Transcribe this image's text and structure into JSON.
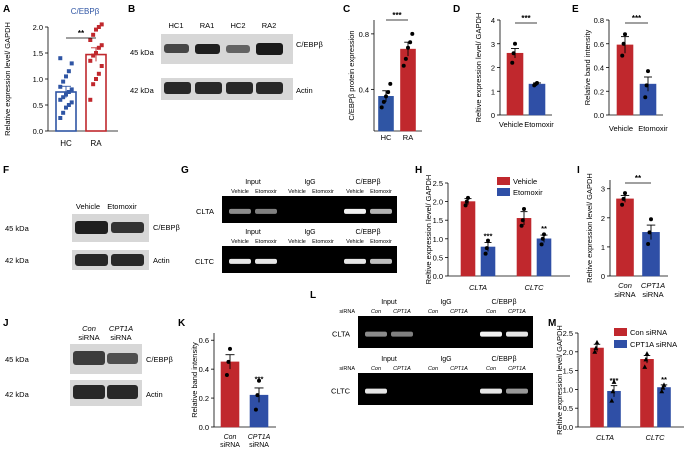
{
  "colors": {
    "hc": "#2f55a4",
    "ra": "#c0282d",
    "vehicle": "#c0282d",
    "etomoxir": "#2f4fa6",
    "gel": "#151515"
  },
  "panels": {
    "A": {
      "letter": "A",
      "title": "C/EBPβ",
      "ylabel": "Relative expression level/ GAPDH",
      "yticks": [
        "0.0",
        "0.5",
        "1.0",
        "1.5",
        "2.0"
      ],
      "sig": "**",
      "xlabels": [
        "HC",
        "RA"
      ]
    },
    "B": {
      "letter": "B",
      "lanes": [
        "HC1",
        "RA1",
        "HC2",
        "RA2"
      ],
      "kda": [
        "45 kDa",
        "42 kDa"
      ],
      "bands": [
        "C/EBPβ",
        "Actin"
      ]
    },
    "C": {
      "letter": "C",
      "ylabel": "C/EBPβ protein expression",
      "yticks": [
        "0.4",
        "0.8"
      ],
      "sig": "***",
      "xlabels": [
        "HC",
        "RA"
      ]
    },
    "D": {
      "letter": "D",
      "ylabel": "Reltive expression level/ GAPDH",
      "yticks": [
        "0",
        "1",
        "2",
        "3",
        "4"
      ],
      "sig": "***",
      "xlabels": [
        "Vehicle",
        "Etomoxir"
      ]
    },
    "E": {
      "letter": "E",
      "ylabel": "Relative band intensity",
      "yticks": [
        "0.0",
        "0.2",
        "0.4",
        "0.6",
        "0.8"
      ],
      "sig": "***",
      "xlabels": [
        "Vehicle",
        "Etomoxir"
      ]
    },
    "F": {
      "letter": "F",
      "lanes": [
        "Vehicle",
        "Etomoxir"
      ],
      "kda": [
        "45 kDa",
        "42 kDa"
      ],
      "bands": [
        "C/EBPβ",
        "Actin"
      ]
    },
    "G": {
      "letter": "G",
      "groups": [
        "Input",
        "IgG",
        "C/EBPβ"
      ],
      "lanes": [
        "Vehicle",
        "Etomoxir",
        "Vehicle",
        "Etomoxir",
        "Vehicle",
        "Etomoxir"
      ],
      "rows": [
        "CLTA",
        "CLTC"
      ]
    },
    "H": {
      "letter": "H",
      "ylabel": "Reltive expression level/ GAPDH",
      "yticks": [
        "0.0",
        "0.5",
        "1.0",
        "1.5",
        "2.0",
        "2.5"
      ],
      "legend": [
        "Vehicle",
        "Etomoxir"
      ],
      "xlabels": [
        "CLTA",
        "CLTC"
      ],
      "sig": [
        "***",
        "**"
      ]
    },
    "I": {
      "letter": "I",
      "ylabel": "Reltive expression level/ GAPDH",
      "yticks": [
        "0",
        "1",
        "2",
        "3"
      ],
      "sig": "**",
      "xlabels": [
        [
          "Con",
          "siRNA"
        ],
        [
          "CPT1A",
          "siRNA"
        ]
      ]
    },
    "J": {
      "letter": "J",
      "lanes": [
        [
          "Con",
          "siRNA"
        ],
        [
          "CPT1A",
          "siRNA"
        ]
      ],
      "kda": [
        "45 kDa",
        "42 kDa"
      ],
      "bands": [
        "C/EBPβ",
        "Actin"
      ]
    },
    "K": {
      "letter": "K",
      "ylabel": "Relative band intensity",
      "yticks": [
        "0.0",
        "0.2",
        "0.4",
        "0.6"
      ],
      "sig": "***",
      "xlabels": [
        [
          "Con",
          "siRNA"
        ],
        [
          "CPT1A",
          "siRNA"
        ]
      ]
    },
    "L": {
      "letter": "L",
      "groups": [
        "Input",
        "IgG",
        "C/EBPβ"
      ],
      "siRNA_label": "siRNA",
      "lanes": [
        "Con",
        "CPT1A",
        "Con",
        "CPT1A",
        "Con",
        "CPT1A"
      ],
      "rows": [
        "CLTA",
        "CLTC"
      ]
    },
    "M": {
      "letter": "M",
      "ylabel": "Reltive expression level/ GAPDH",
      "yticks": [
        "0.0",
        "0.5",
        "1.0",
        "1.5",
        "2.0",
        "2.5"
      ],
      "legend": [
        "Con siRNA",
        "CPT1A siRNA"
      ],
      "xlabels": [
        "CLTA",
        "CLTC"
      ],
      "sig": [
        "***",
        "**"
      ]
    }
  },
  "chart_data": [
    {
      "panel": "A",
      "type": "bar",
      "categories": [
        "HC",
        "RA"
      ],
      "values": [
        0.75,
        1.47
      ],
      "errors": [
        0.11,
        0.13
      ],
      "ylim": [
        0,
        2.0
      ],
      "points": [
        [
          0.25,
          0.35,
          0.45,
          0.5,
          0.55,
          0.6,
          0.65,
          0.7,
          0.75,
          0.8,
          0.85,
          0.95,
          1.05,
          1.15,
          1.3,
          1.4
        ],
        [
          0.6,
          0.9,
          1.0,
          1.1,
          1.25,
          1.35,
          1.45,
          1.5,
          1.6,
          1.65,
          1.75,
          1.85,
          1.95,
          2.0,
          2.05
        ]
      ]
    },
    {
      "panel": "C",
      "type": "bar",
      "categories": [
        "HC",
        "RA"
      ],
      "values": [
        0.35,
        0.69
      ],
      "errors": [
        0.04,
        0.05
      ],
      "ylim": [
        0.1,
        0.9
      ],
      "points": [
        [
          0.27,
          0.31,
          0.35,
          0.38,
          0.44
        ],
        [
          0.57,
          0.62,
          0.7,
          0.74,
          0.8
        ]
      ]
    },
    {
      "panel": "D",
      "type": "bar",
      "categories": [
        "Vehicle",
        "Etomoxir"
      ],
      "values": [
        2.6,
        1.3
      ],
      "errors": [
        0.2,
        0.05
      ],
      "ylim": [
        0,
        4
      ],
      "points": [
        [
          2.2,
          2.6,
          3.0
        ],
        [
          1.25,
          1.3,
          1.35
        ]
      ]
    },
    {
      "panel": "E",
      "type": "bar",
      "categories": [
        "Vehicle",
        "Etomoxir"
      ],
      "values": [
        0.59,
        0.26
      ],
      "errors": [
        0.07,
        0.06
      ],
      "ylim": [
        0,
        0.8
      ],
      "points": [
        [
          0.5,
          0.6,
          0.68
        ],
        [
          0.15,
          0.25,
          0.37
        ]
      ]
    },
    {
      "panel": "H",
      "type": "bar",
      "categories": [
        "CLTA",
        "CLTC"
      ],
      "ylim": [
        0,
        2.5
      ],
      "series": [
        {
          "name": "Vehicle",
          "values": [
            2.0,
            1.55
          ],
          "errors": [
            0.08,
            0.18
          ],
          "points": [
            [
              1.9,
              2.0,
              2.1
            ],
            [
              1.35,
              1.5,
              1.8
            ]
          ]
        },
        {
          "name": "Etomoxir",
          "values": [
            0.78,
            1.0
          ],
          "errors": [
            0.12,
            0.1
          ],
          "points": [
            [
              0.6,
              0.75,
              0.95
            ],
            [
              0.85,
              1.0,
              1.12
            ]
          ]
        }
      ]
    },
    {
      "panel": "I",
      "type": "bar",
      "categories": [
        "Con siRNA",
        "CPT1A siRNA"
      ],
      "values": [
        2.65,
        1.5
      ],
      "errors": [
        0.12,
        0.25
      ],
      "ylim": [
        0,
        3.3
      ],
      "points": [
        [
          2.45,
          2.65,
          2.85
        ],
        [
          1.1,
          1.5,
          1.95
        ]
      ]
    },
    {
      "panel": "K",
      "type": "bar",
      "categories": [
        "Con siRNA",
        "CPT1A siRNA"
      ],
      "values": [
        0.45,
        0.22
      ],
      "errors": [
        0.05,
        0.05
      ],
      "ylim": [
        0,
        0.65
      ],
      "points": [
        [
          0.36,
          0.45,
          0.54
        ],
        [
          0.12,
          0.22,
          0.32
        ]
      ]
    },
    {
      "panel": "M",
      "type": "bar",
      "categories": [
        "CLTA",
        "CLTC"
      ],
      "ylim": [
        0,
        2.5
      ],
      "series": [
        {
          "name": "Con siRNA",
          "values": [
            2.1,
            1.8
          ],
          "errors": [
            0.1,
            0.1
          ],
          "points": [
            [
              2.0,
              2.1,
              2.25
            ],
            [
              1.6,
              1.8,
              1.95
            ]
          ]
        },
        {
          "name": "CPT1A siRNA",
          "values": [
            0.95,
            1.05
          ],
          "errors": [
            0.15,
            0.07
          ],
          "points": [
            [
              0.7,
              0.95,
              1.2
            ],
            [
              0.95,
              1.05,
              1.12
            ]
          ]
        }
      ]
    }
  ]
}
